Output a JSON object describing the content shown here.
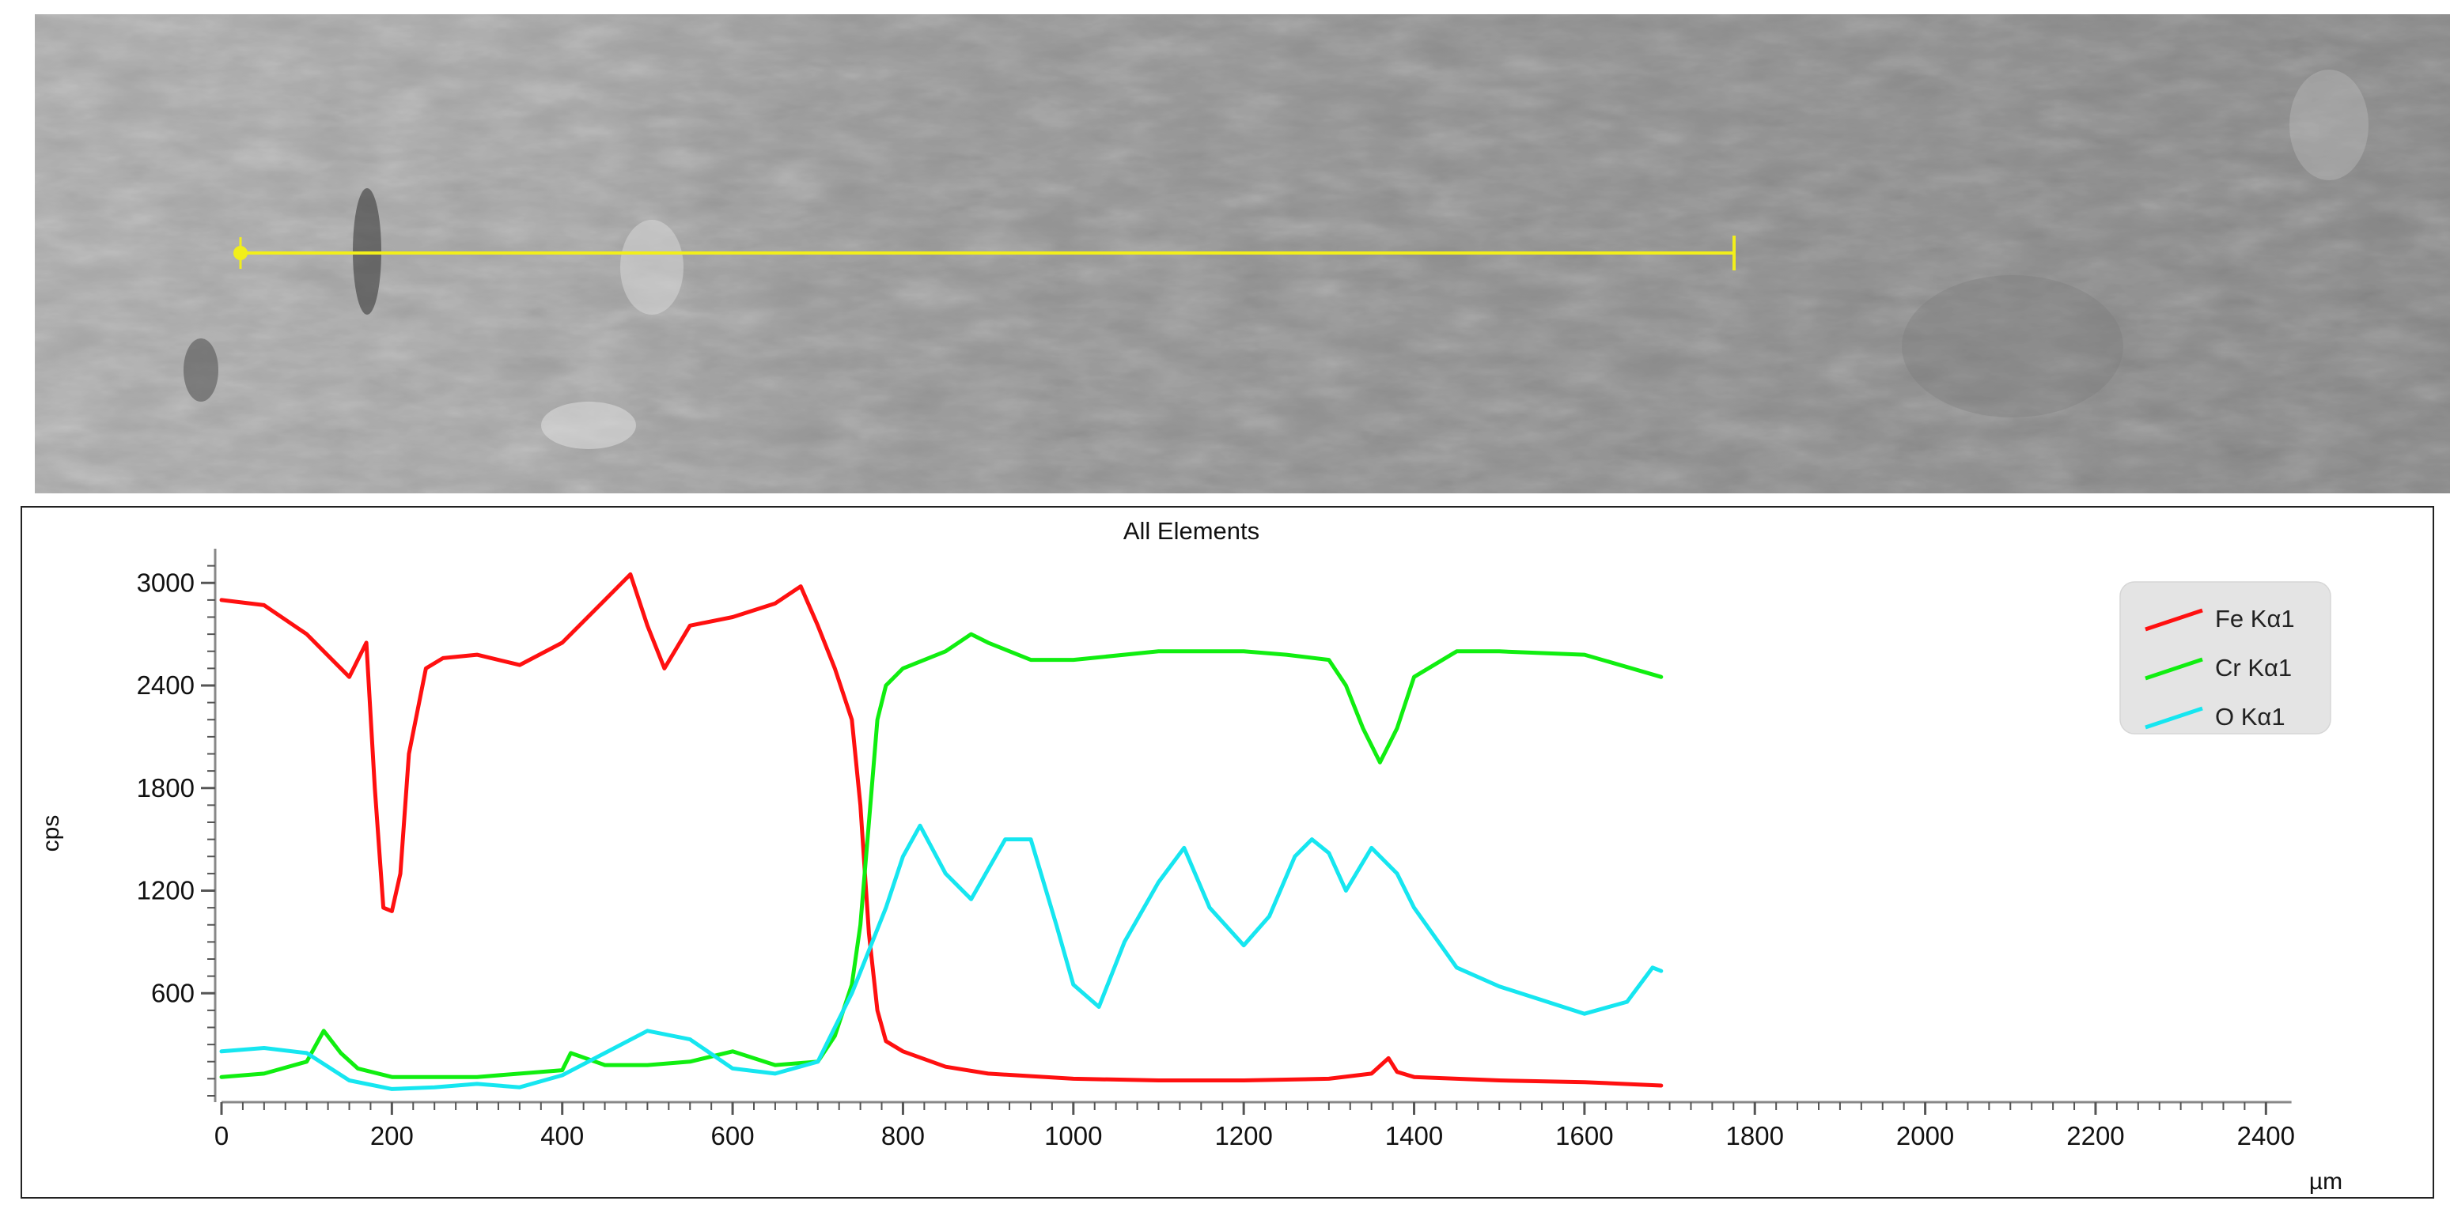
{
  "chart_data": {
    "type": "line",
    "title": "All Elements",
    "xlabel": "µm",
    "ylabel": "cps",
    "xlim": [
      0,
      2500
    ],
    "ylim": [
      0,
      3200
    ],
    "x_ticks": [
      0,
      200,
      400,
      600,
      800,
      1000,
      1200,
      1400,
      1600,
      1800,
      2000,
      2200,
      2400
    ],
    "y_ticks": [
      600,
      1200,
      1800,
      2400,
      3000
    ],
    "legend_position": "top-right",
    "series": [
      {
        "name": "Fe Kα1",
        "color": "#ff1010",
        "x": [
          0,
          50,
          100,
          150,
          170,
          180,
          190,
          200,
          210,
          220,
          240,
          260,
          300,
          350,
          400,
          450,
          480,
          500,
          520,
          550,
          600,
          650,
          680,
          700,
          720,
          740,
          750,
          760,
          770,
          780,
          800,
          850,
          900,
          1000,
          1100,
          1200,
          1300,
          1350,
          1370,
          1380,
          1400,
          1500,
          1600,
          1690
        ],
        "y": [
          2900,
          2870,
          2700,
          2450,
          2650,
          1800,
          1100,
          1080,
          1300,
          2000,
          2500,
          2560,
          2580,
          2520,
          2650,
          2900,
          3050,
          2750,
          2500,
          2750,
          2800,
          2880,
          2980,
          2750,
          2500,
          2200,
          1700,
          950,
          500,
          320,
          260,
          170,
          130,
          100,
          90,
          90,
          100,
          130,
          220,
          140,
          110,
          90,
          80,
          60
        ]
      },
      {
        "name": "Cr Kα1",
        "color": "#10ee10",
        "x": [
          0,
          50,
          100,
          120,
          140,
          160,
          200,
          300,
          400,
          410,
          450,
          500,
          550,
          600,
          650,
          700,
          720,
          740,
          750,
          760,
          770,
          780,
          800,
          850,
          880,
          900,
          950,
          1000,
          1100,
          1200,
          1250,
          1300,
          1320,
          1340,
          1350,
          1360,
          1370,
          1380,
          1400,
          1450,
          1500,
          1600,
          1690
        ],
        "y": [
          110,
          130,
          200,
          380,
          250,
          160,
          110,
          110,
          150,
          250,
          180,
          180,
          200,
          260,
          180,
          200,
          350,
          650,
          1000,
          1600,
          2200,
          2400,
          2500,
          2600,
          2700,
          2650,
          2550,
          2550,
          2600,
          2600,
          2580,
          2550,
          2400,
          2150,
          2050,
          1950,
          2050,
          2150,
          2450,
          2600,
          2600,
          2580,
          2450
        ]
      },
      {
        "name": "O Kα1",
        "color": "#16e6f0",
        "x": [
          0,
          50,
          100,
          150,
          200,
          250,
          300,
          350,
          400,
          450,
          500,
          550,
          600,
          650,
          700,
          720,
          740,
          760,
          780,
          800,
          820,
          850,
          880,
          920,
          950,
          980,
          1000,
          1030,
          1060,
          1100,
          1130,
          1160,
          1200,
          1230,
          1260,
          1280,
          1300,
          1320,
          1350,
          1380,
          1400,
          1450,
          1500,
          1550,
          1600,
          1650,
          1680,
          1690
        ],
        "y": [
          260,
          280,
          250,
          90,
          40,
          50,
          70,
          50,
          120,
          250,
          380,
          330,
          160,
          130,
          200,
          400,
          600,
          850,
          1100,
          1400,
          1580,
          1300,
          1150,
          1500,
          1500,
          1000,
          650,
          520,
          900,
          1250,
          1450,
          1100,
          880,
          1050,
          1400,
          1500,
          1420,
          1200,
          1450,
          1300,
          1100,
          750,
          640,
          560,
          480,
          550,
          750,
          730
        ]
      }
    ]
  }
}
